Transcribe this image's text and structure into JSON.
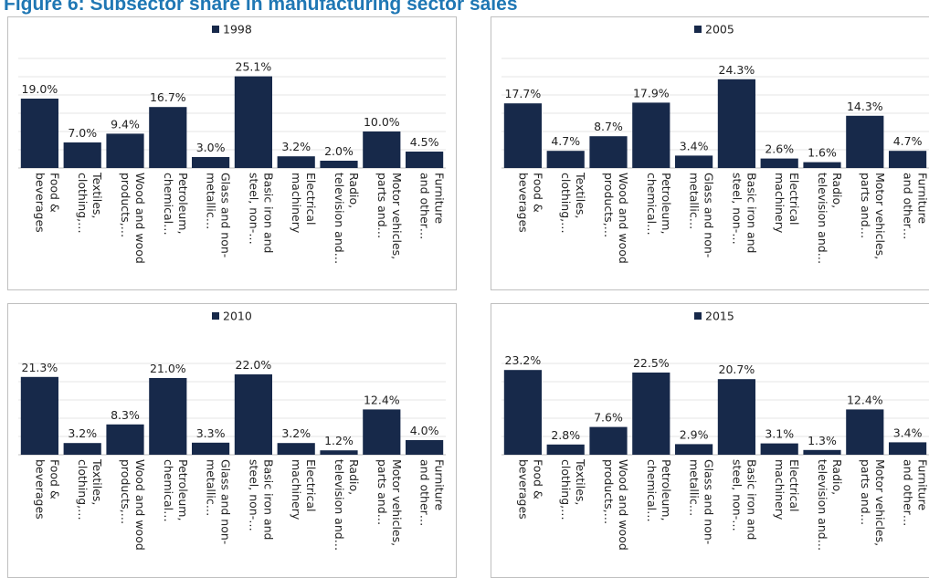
{
  "title": "Figure 6: Subsector share in manufacturing sector sales",
  "chart_data": [
    {
      "type": "bar",
      "categories": [
        "Food & beverages",
        "Textiles, clothing,…",
        "Wood and wood products,…",
        "Petroleum, chemical…",
        "Glass and non-metallic…",
        "Basic iron and steel, non-…",
        "Electrical machinery",
        "Radio, television and…",
        "Motor vehicles, parts and…",
        "Furniture and other…"
      ],
      "series": [
        {
          "name": "1998",
          "color": "#17294a",
          "values": [
            19.0,
            7.0,
            9.4,
            16.7,
            3.0,
            25.1,
            3.2,
            2.0,
            10.0,
            4.5
          ],
          "value_labels": [
            "19.0%",
            "7.0%",
            "9.4%",
            "16.7%",
            "3.0%",
            "25.1%",
            "3.2%",
            "2.0%",
            "10.0%",
            "4.5%"
          ]
        }
      ],
      "ylim": [
        0,
        30
      ],
      "yticks": [
        0,
        5,
        10,
        15,
        20,
        25,
        30
      ],
      "grid": true
    },
    {
      "type": "bar",
      "categories": [
        "Food & beverages",
        "Textiles, clothing,…",
        "Wood and wood products,…",
        "Petroleum, chemical…",
        "Glass and non-metallic…",
        "Basic iron and steel, non-…",
        "Electrical machinery",
        "Radio, television and…",
        "Motor vehicles, parts and…",
        "Furniture and other…"
      ],
      "series": [
        {
          "name": "2005",
          "color": "#17294a",
          "values": [
            17.7,
            4.7,
            8.7,
            17.9,
            3.4,
            24.3,
            2.6,
            1.6,
            14.3,
            4.7
          ],
          "value_labels": [
            "17.7%",
            "4.7%",
            "8.7%",
            "17.9%",
            "3.4%",
            "24.3%",
            "2.6%",
            "1.6%",
            "14.3%",
            "4.7%"
          ]
        }
      ],
      "ylim": [
        0,
        30
      ],
      "yticks": [
        0,
        5,
        10,
        15,
        20,
        25,
        30
      ],
      "grid": true
    },
    {
      "type": "bar",
      "categories": [
        "Food & beverages",
        "Textiles, clothing,…",
        "Wood and wood products,…",
        "Petroleum, chemical…",
        "Glass and non-metallic…",
        "Basic iron and steel, non-…",
        "Electrical machinery",
        "Radio, television and…",
        "Motor vehicles, parts and…",
        "Furniture and other…"
      ],
      "series": [
        {
          "name": "2010",
          "color": "#17294a",
          "values": [
            21.3,
            3.2,
            8.3,
            21.0,
            3.3,
            22.0,
            3.2,
            1.2,
            12.4,
            4.0
          ],
          "value_labels": [
            "21.3%",
            "3.2%",
            "8.3%",
            "21.0%",
            "3.3%",
            "22.0%",
            "3.2%",
            "1.2%",
            "12.4%",
            "4.0%"
          ]
        }
      ],
      "ylim": [
        0,
        25
      ],
      "yticks": [
        0,
        5,
        10,
        15,
        20,
        25
      ],
      "grid": true
    },
    {
      "type": "bar",
      "categories": [
        "Food & beverages",
        "Textiles, clothing,…",
        "Wood and wood products,…",
        "Petroleum, chemical…",
        "Glass and non-metallic…",
        "Basic iron and steel, non-…",
        "Electrical machinery",
        "Radio, television and…",
        "Motor vehicles, parts and…",
        "Furniture and other…"
      ],
      "series": [
        {
          "name": "2015",
          "color": "#17294a",
          "values": [
            23.2,
            2.8,
            7.6,
            22.5,
            2.9,
            20.7,
            3.1,
            1.3,
            12.4,
            3.4
          ],
          "value_labels": [
            "23.2%",
            "2.8%",
            "7.6%",
            "22.5%",
            "2.9%",
            "20.7%",
            "3.1%",
            "1.3%",
            "12.4%",
            "3.4%"
          ]
        }
      ],
      "ylim": [
        0,
        25
      ],
      "yticks": [
        0,
        5,
        10,
        15,
        20,
        25
      ],
      "grid": true
    }
  ]
}
